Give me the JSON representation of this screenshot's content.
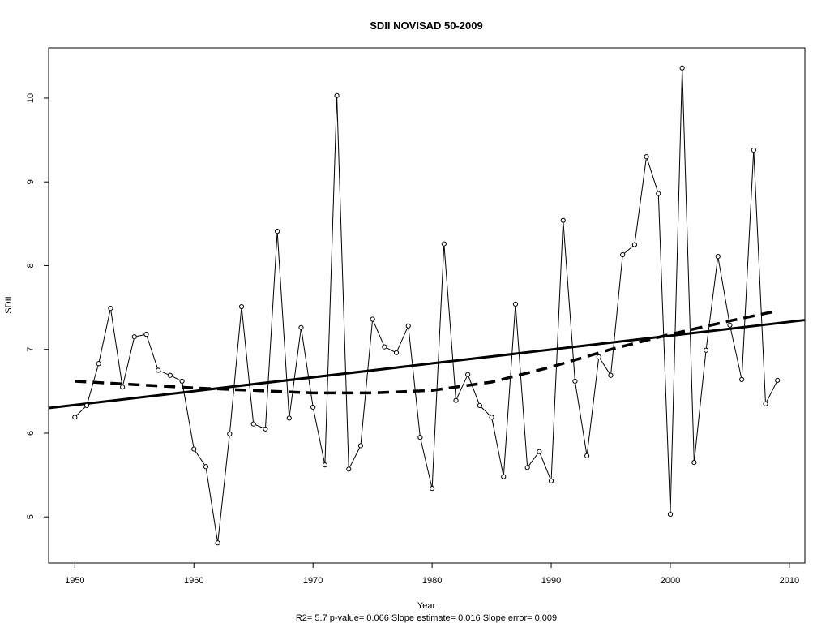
{
  "chart_data": {
    "type": "line",
    "title": "SDII   NOVISAD 50-2009",
    "xlabel": "Year",
    "ylabel": "SDII",
    "footer": "R2= 5.7  p-value= 0.066  Slope estimate= 0.016  Slope error= 0.009",
    "xlim": [
      1947.8,
      2011.3
    ],
    "ylim": [
      4.45,
      10.6
    ],
    "x_ticks": [
      1950,
      1960,
      1970,
      1980,
      1990,
      2000,
      2010
    ],
    "y_ticks": [
      5,
      6,
      7,
      8,
      9,
      10
    ],
    "grid": false,
    "legend": "none",
    "series": [
      {
        "style": "line-points",
        "x": [
          1950,
          1951,
          1952,
          1953,
          1954,
          1955,
          1956,
          1957,
          1958,
          1959,
          1960,
          1961,
          1962,
          1963,
          1964,
          1965,
          1966,
          1967,
          1968,
          1969,
          1970,
          1971,
          1972,
          1973,
          1974,
          1975,
          1976,
          1977,
          1978,
          1979,
          1980,
          1981,
          1982,
          1983,
          1984,
          1985,
          1986,
          1987,
          1988,
          1989,
          1990,
          1991,
          1992,
          1993,
          1994,
          1995,
          1996,
          1997,
          1998,
          1999,
          2000,
          2001,
          2002,
          2003,
          2004,
          2005,
          2006,
          2007,
          2008,
          2009
        ],
        "values": [
          6.19,
          6.33,
          6.83,
          7.49,
          6.55,
          7.15,
          7.18,
          6.75,
          6.69,
          6.62,
          5.81,
          5.6,
          4.69,
          5.99,
          7.51,
          6.11,
          6.05,
          8.41,
          6.18,
          7.26,
          6.31,
          5.62,
          10.03,
          5.57,
          5.85,
          7.36,
          7.03,
          6.96,
          7.28,
          5.95,
          5.34,
          8.26,
          6.39,
          6.7,
          6.33,
          6.19,
          5.48,
          7.54,
          5.59,
          5.78,
          5.43,
          8.54,
          6.62,
          5.73,
          6.91,
          6.69,
          8.13,
          8.25,
          9.3,
          8.86,
          5.03,
          10.36,
          5.65,
          6.99,
          8.11,
          7.29,
          6.64,
          9.38,
          6.35,
          6.63
        ]
      },
      {
        "style": "solid-trend",
        "x": [
          1947.8,
          2011.3
        ],
        "values": [
          6.3,
          7.35
        ]
      },
      {
        "style": "dashed-smooth",
        "x": [
          1950,
          1955,
          1960,
          1965,
          1970,
          1975,
          1980,
          1985,
          1990,
          1995,
          2000,
          2005,
          2009
        ],
        "values": [
          6.62,
          6.58,
          6.54,
          6.51,
          6.48,
          6.48,
          6.51,
          6.61,
          6.79,
          7.0,
          7.18,
          7.34,
          7.46
        ]
      }
    ]
  }
}
